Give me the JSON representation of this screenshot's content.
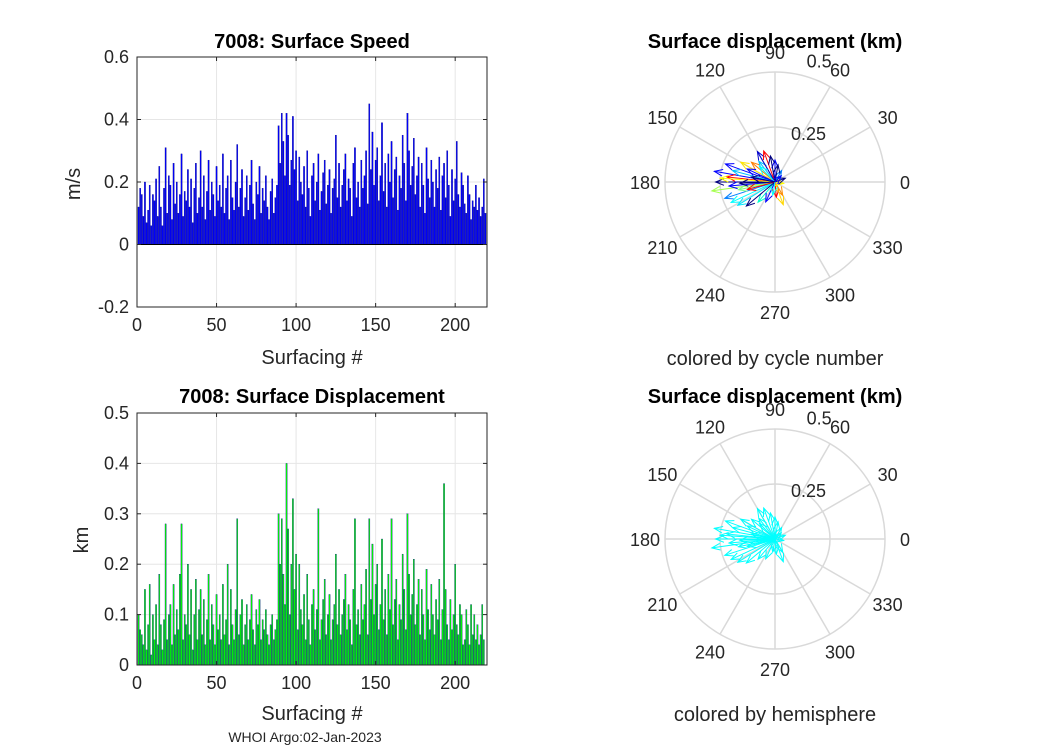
{
  "footer": "WHOI Argo:02-Jan-2023",
  "chart_data": [
    {
      "id": "speed",
      "type": "bar",
      "title": "7008: Surface Speed",
      "xlabel": "Surfacing #",
      "ylabel": "m/s",
      "xlim": [
        0,
        220
      ],
      "ylim": [
        -0.2,
        0.6
      ],
      "xticks": [
        0,
        50,
        100,
        150,
        200
      ],
      "yticks": [
        -0.2,
        0,
        0.2,
        0.4,
        0.6
      ],
      "ytick_labels": [
        "-0.2",
        "0",
        "0.2",
        "0.4",
        "0.6"
      ],
      "grid": true,
      "color": "#0000ff",
      "x_start": 1,
      "values": [
        0.12,
        0.18,
        0.16,
        0.09,
        0.2,
        0.07,
        0.11,
        0.19,
        0.06,
        0.16,
        0.14,
        0.21,
        0.09,
        0.25,
        0.12,
        0.06,
        0.18,
        0.31,
        0.1,
        0.22,
        0.19,
        0.08,
        0.26,
        0.13,
        0.2,
        0.1,
        0.16,
        0.29,
        0.09,
        0.17,
        0.14,
        0.24,
        0.12,
        0.21,
        0.07,
        0.18,
        0.26,
        0.1,
        0.15,
        0.3,
        0.12,
        0.22,
        0.08,
        0.17,
        0.27,
        0.11,
        0.2,
        0.16,
        0.09,
        0.25,
        0.14,
        0.19,
        0.12,
        0.29,
        0.1,
        0.18,
        0.22,
        0.08,
        0.27,
        0.15,
        0.11,
        0.2,
        0.32,
        0.12,
        0.18,
        0.24,
        0.09,
        0.15,
        0.22,
        0.11,
        0.19,
        0.27,
        0.13,
        0.08,
        0.2,
        0.16,
        0.25,
        0.1,
        0.18,
        0.14,
        0.22,
        0.12,
        0.08,
        0.17,
        0.21,
        0.1,
        0.15,
        0.19,
        0.38,
        0.26,
        0.42,
        0.33,
        0.22,
        0.42,
        0.35,
        0.19,
        0.27,
        0.41,
        0.24,
        0.3,
        0.14,
        0.28,
        0.2,
        0.16,
        0.25,
        0.12,
        0.3,
        0.18,
        0.09,
        0.22,
        0.26,
        0.14,
        0.2,
        0.29,
        0.11,
        0.17,
        0.23,
        0.27,
        0.13,
        0.19,
        0.24,
        0.1,
        0.18,
        0.21,
        0.35,
        0.15,
        0.26,
        0.12,
        0.19,
        0.24,
        0.29,
        0.14,
        0.21,
        0.18,
        0.09,
        0.26,
        0.31,
        0.15,
        0.2,
        0.12,
        0.27,
        0.18,
        0.22,
        0.3,
        0.13,
        0.45,
        0.24,
        0.36,
        0.19,
        0.27,
        0.31,
        0.14,
        0.22,
        0.39,
        0.17,
        0.26,
        0.12,
        0.29,
        0.2,
        0.33,
        0.15,
        0.24,
        0.28,
        0.11,
        0.22,
        0.18,
        0.35,
        0.26,
        0.14,
        0.42,
        0.3,
        0.19,
        0.25,
        0.34,
        0.16,
        0.22,
        0.28,
        0.12,
        0.26,
        0.19,
        0.1,
        0.31,
        0.21,
        0.15,
        0.27,
        0.2,
        0.12,
        0.24,
        0.18,
        0.28,
        0.11,
        0.22,
        0.26,
        0.15,
        0.3,
        0.19,
        0.09,
        0.24,
        0.14,
        0.21,
        0.33,
        0.16,
        0.12,
        0.23,
        0.19,
        0.13,
        0.1,
        0.22,
        0.16,
        0.08,
        0.14,
        0.12,
        0.19,
        0.11,
        0.15,
        0.09,
        0.12,
        0.21,
        0.1
      ]
    },
    {
      "id": "displacement",
      "type": "bar",
      "title": "7008: Surface Displacement",
      "xlabel": "Surfacing #",
      "ylabel": "km",
      "xlim": [
        0,
        220
      ],
      "ylim": [
        0,
        0.5
      ],
      "xticks": [
        0,
        50,
        100,
        150,
        200
      ],
      "yticks": [
        0,
        0.1,
        0.2,
        0.3,
        0.4,
        0.5
      ],
      "ytick_labels": [
        "0",
        "0.1",
        "0.2",
        "0.3",
        "0.4",
        "0.5"
      ],
      "grid": true,
      "color": "#00ff00",
      "x_start": 1,
      "values": [
        0.1,
        0.07,
        0.06,
        0.04,
        0.15,
        0.03,
        0.08,
        0.16,
        0.02,
        0.1,
        0.05,
        0.12,
        0.04,
        0.18,
        0.08,
        0.03,
        0.09,
        0.28,
        0.05,
        0.1,
        0.12,
        0.04,
        0.16,
        0.06,
        0.11,
        0.07,
        0.18,
        0.28,
        0.05,
        0.1,
        0.08,
        0.2,
        0.06,
        0.15,
        0.03,
        0.1,
        0.17,
        0.05,
        0.11,
        0.15,
        0.06,
        0.13,
        0.04,
        0.09,
        0.18,
        0.05,
        0.12,
        0.08,
        0.04,
        0.14,
        0.07,
        0.1,
        0.05,
        0.16,
        0.06,
        0.09,
        0.2,
        0.04,
        0.15,
        0.08,
        0.05,
        0.11,
        0.29,
        0.06,
        0.1,
        0.13,
        0.04,
        0.08,
        0.12,
        0.05,
        0.09,
        0.14,
        0.07,
        0.04,
        0.11,
        0.08,
        0.13,
        0.05,
        0.09,
        0.07,
        0.11,
        0.06,
        0.04,
        0.08,
        0.1,
        0.05,
        0.07,
        0.09,
        0.3,
        0.2,
        0.29,
        0.18,
        0.12,
        0.4,
        0.27,
        0.1,
        0.2,
        0.33,
        0.15,
        0.22,
        0.07,
        0.2,
        0.11,
        0.08,
        0.14,
        0.05,
        0.18,
        0.09,
        0.04,
        0.12,
        0.15,
        0.07,
        0.11,
        0.31,
        0.05,
        0.09,
        0.13,
        0.17,
        0.06,
        0.1,
        0.14,
        0.05,
        0.09,
        0.12,
        0.22,
        0.08,
        0.15,
        0.06,
        0.1,
        0.13,
        0.18,
        0.07,
        0.12,
        0.09,
        0.04,
        0.15,
        0.29,
        0.08,
        0.11,
        0.06,
        0.16,
        0.09,
        0.12,
        0.19,
        0.06,
        0.29,
        0.13,
        0.24,
        0.1,
        0.16,
        0.2,
        0.07,
        0.12,
        0.25,
        0.09,
        0.15,
        0.06,
        0.18,
        0.11,
        0.29,
        0.08,
        0.13,
        0.17,
        0.05,
        0.12,
        0.09,
        0.22,
        0.15,
        0.07,
        0.3,
        0.18,
        0.1,
        0.14,
        0.21,
        0.08,
        0.12,
        0.17,
        0.06,
        0.15,
        0.1,
        0.05,
        0.19,
        0.11,
        0.07,
        0.16,
        0.1,
        0.06,
        0.13,
        0.09,
        0.17,
        0.05,
        0.11,
        0.36,
        0.15,
        0.08,
        0.05,
        0.13,
        0.07,
        0.1,
        0.2,
        0.08,
        0.06,
        0.12,
        0.1,
        0.04,
        0.05,
        0.11,
        0.08,
        0.04,
        0.12,
        0.06,
        0.1,
        0.05,
        0.08,
        0.04,
        0.06,
        0.12,
        0.05
      ]
    },
    {
      "id": "polar-cycle",
      "type": "polar",
      "title": "Surface displacement (km)",
      "caption": "colored by cycle number",
      "rmax": 0.5,
      "r_tick_labels": [
        "0.25",
        "0.5"
      ],
      "angle_labels": [
        "0",
        "30",
        "60",
        "90",
        "120",
        "150",
        "180",
        "210",
        "240",
        "270",
        "300",
        "330"
      ],
      "color_scheme": "jet",
      "arrows": [
        {
          "angle": 180,
          "length": 0.27,
          "color": "#00007f"
        },
        {
          "angle": 170,
          "length": 0.28,
          "color": "#0000ff"
        },
        {
          "angle": 188,
          "length": 0.29,
          "color": "#a6ff50"
        },
        {
          "angle": 174,
          "length": 0.22,
          "color": "#ff0000"
        },
        {
          "angle": 160,
          "length": 0.24,
          "color": "#0000ff"
        },
        {
          "angle": 140,
          "length": 0.14,
          "color": "#ff7f00"
        },
        {
          "angle": 128,
          "length": 0.12,
          "color": "#00bfff"
        },
        {
          "angle": 120,
          "length": 0.16,
          "color": "#0000cc"
        },
        {
          "angle": 110,
          "length": 0.15,
          "color": "#ff0000"
        },
        {
          "angle": 150,
          "length": 0.18,
          "color": "#ffe600"
        },
        {
          "angle": 198,
          "length": 0.24,
          "color": "#007fff"
        },
        {
          "angle": 205,
          "length": 0.22,
          "color": "#00ffff"
        },
        {
          "angle": 212,
          "length": 0.2,
          "color": "#00e5ff"
        },
        {
          "angle": 230,
          "length": 0.12,
          "color": "#00ffcc"
        },
        {
          "angle": 245,
          "length": 0.1,
          "color": "#0000ff"
        },
        {
          "angle": 275,
          "length": 0.07,
          "color": "#ff0000"
        },
        {
          "angle": 290,
          "length": 0.11,
          "color": "#ffd700"
        },
        {
          "angle": 300,
          "length": 0.07,
          "color": "#ff8c00"
        },
        {
          "angle": 350,
          "length": 0.04,
          "color": "#ffff00"
        },
        {
          "angle": 20,
          "length": 0.05,
          "color": "#00007f"
        },
        {
          "angle": 60,
          "length": 0.06,
          "color": "#007fff"
        },
        {
          "angle": 90,
          "length": 0.1,
          "color": "#0000ff"
        },
        {
          "angle": 100,
          "length": 0.12,
          "color": "#00007f"
        },
        {
          "angle": 165,
          "length": 0.2,
          "color": "#00bfff"
        },
        {
          "angle": 185,
          "length": 0.21,
          "color": "#0000ff"
        },
        {
          "angle": 192,
          "length": 0.17,
          "color": "#7fff7f"
        },
        {
          "angle": 176,
          "length": 0.25,
          "color": "#ffff00"
        },
        {
          "angle": 220,
          "length": 0.17,
          "color": "#00007f"
        },
        {
          "angle": 135,
          "length": 0.1,
          "color": "#00ffff"
        },
        {
          "angle": 155,
          "length": 0.14,
          "color": "#0000ff"
        },
        {
          "angle": 195,
          "length": 0.13,
          "color": "#ff0000"
        },
        {
          "angle": 182,
          "length": 0.16,
          "color": "#00007f"
        },
        {
          "angle": 168,
          "length": 0.11,
          "color": "#00007f"
        },
        {
          "angle": 260,
          "length": 0.06,
          "color": "#00ffff"
        },
        {
          "angle": 80,
          "length": 0.08,
          "color": "#00007f"
        },
        {
          "angle": 45,
          "length": 0.04,
          "color": "#0000ff"
        }
      ]
    },
    {
      "id": "polar-hemisphere",
      "type": "polar",
      "title": "Surface displacement (km)",
      "caption": "colored by hemisphere",
      "rmax": 0.5,
      "r_tick_labels": [
        "0.25",
        "0.5"
      ],
      "angle_labels": [
        "0",
        "30",
        "60",
        "90",
        "120",
        "150",
        "180",
        "210",
        "240",
        "270",
        "300",
        "330"
      ],
      "color_scheme": "cyan",
      "arrows": [
        {
          "angle": 180,
          "length": 0.27,
          "color": "#00ffff"
        },
        {
          "angle": 170,
          "length": 0.28,
          "color": "#00ffff"
        },
        {
          "angle": 188,
          "length": 0.29,
          "color": "#00ffff"
        },
        {
          "angle": 174,
          "length": 0.22,
          "color": "#00ffff"
        },
        {
          "angle": 160,
          "length": 0.24,
          "color": "#00ffff"
        },
        {
          "angle": 140,
          "length": 0.14,
          "color": "#00ffff"
        },
        {
          "angle": 128,
          "length": 0.12,
          "color": "#00ffff"
        },
        {
          "angle": 120,
          "length": 0.16,
          "color": "#00ffff"
        },
        {
          "angle": 110,
          "length": 0.15,
          "color": "#00ffff"
        },
        {
          "angle": 150,
          "length": 0.18,
          "color": "#00ffff"
        },
        {
          "angle": 198,
          "length": 0.24,
          "color": "#00ffff"
        },
        {
          "angle": 205,
          "length": 0.22,
          "color": "#00ffff"
        },
        {
          "angle": 212,
          "length": 0.2,
          "color": "#00ffff"
        },
        {
          "angle": 230,
          "length": 0.12,
          "color": "#00ffff"
        },
        {
          "angle": 245,
          "length": 0.1,
          "color": "#00ffff"
        },
        {
          "angle": 275,
          "length": 0.07,
          "color": "#00ffff"
        },
        {
          "angle": 290,
          "length": 0.11,
          "color": "#00ffff"
        },
        {
          "angle": 300,
          "length": 0.07,
          "color": "#00ffff"
        },
        {
          "angle": 350,
          "length": 0.04,
          "color": "#00ffff"
        },
        {
          "angle": 20,
          "length": 0.05,
          "color": "#00ffff"
        },
        {
          "angle": 60,
          "length": 0.06,
          "color": "#00ffff"
        },
        {
          "angle": 90,
          "length": 0.1,
          "color": "#00ffff"
        },
        {
          "angle": 100,
          "length": 0.12,
          "color": "#00ffff"
        },
        {
          "angle": 165,
          "length": 0.2,
          "color": "#00ffff"
        },
        {
          "angle": 185,
          "length": 0.21,
          "color": "#00ffff"
        },
        {
          "angle": 192,
          "length": 0.17,
          "color": "#00ffff"
        },
        {
          "angle": 176,
          "length": 0.25,
          "color": "#00ffff"
        },
        {
          "angle": 220,
          "length": 0.17,
          "color": "#00ffff"
        },
        {
          "angle": 135,
          "length": 0.1,
          "color": "#00ffff"
        },
        {
          "angle": 155,
          "length": 0.14,
          "color": "#00ffff"
        },
        {
          "angle": 195,
          "length": 0.13,
          "color": "#00ffff"
        },
        {
          "angle": 182,
          "length": 0.16,
          "color": "#00ffff"
        },
        {
          "angle": 168,
          "length": 0.11,
          "color": "#00ffff"
        },
        {
          "angle": 260,
          "length": 0.06,
          "color": "#00ffff"
        },
        {
          "angle": 80,
          "length": 0.08,
          "color": "#00ffff"
        },
        {
          "angle": 45,
          "length": 0.04,
          "color": "#00ffff"
        }
      ]
    }
  ]
}
